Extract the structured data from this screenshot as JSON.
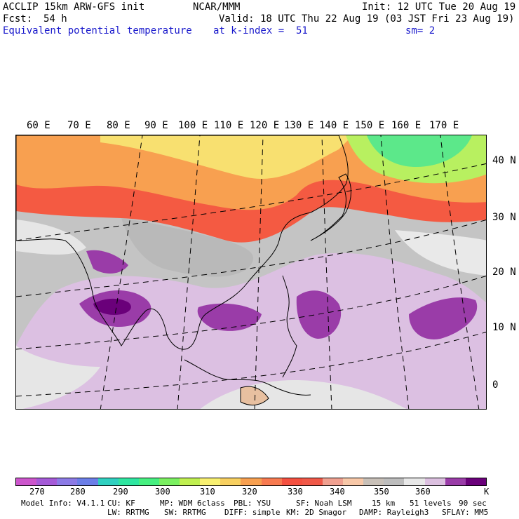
{
  "header": {
    "model": "ACCLIP 15km ARW-GFS init",
    "org": "NCAR/MMM",
    "init": "Init: 12 UTC Tue 20 Aug 19",
    "fcst_label": "Fcst:",
    "fcst_value": "54 h",
    "valid": "Valid: 18 UTC Thu 22 Aug 19 (03 JST Fri 23 Aug 19)",
    "field": "Equivalent potential temperature",
    "level": "at k-index =  51",
    "smooth": "sm= 2"
  },
  "map": {
    "lon_labels": [
      "60 E",
      "70 E",
      "80 E",
      "90 E",
      "100 E",
      "110 E",
      "120 E",
      "130 E",
      "140 E",
      "150 E",
      "160 E",
      "170 E"
    ],
    "lat_labels": [
      "40 N",
      "30 N",
      "20 N",
      "10 N",
      "0"
    ]
  },
  "colorbar": {
    "colors": [
      "#cc55cc",
      "#a55ad8",
      "#8c7ae6",
      "#6b7ee8",
      "#2fd0c0",
      "#2ee6a0",
      "#46f080",
      "#7af060",
      "#c0f050",
      "#f8f070",
      "#f8d060",
      "#f8a050",
      "#f87a50",
      "#f45040",
      "#f05848",
      "#f0a090",
      "#f8c8a8",
      "#c8c0b8",
      "#bdbdbd",
      "#e8e8e8",
      "#dcc0e0",
      "#9a3ca8",
      "#6a007a"
    ],
    "tick_labels": [
      "270",
      "280",
      "290",
      "300",
      "310",
      "320",
      "330",
      "340",
      "350",
      "360"
    ],
    "unit": "K"
  },
  "model_info": {
    "version": "Model Info: V4.1.1",
    "cu": "CU: KF",
    "mp": "MP: WDM 6class",
    "pbl": "PBL: YSU",
    "sf": "SF: Noah LSM",
    "res": "15 km",
    "levels": "51 levels",
    "dt": "90 sec",
    "lw": "LW: RRTMG",
    "sw": "SW: RRTMG",
    "diff": "DIFF: simple",
    "km": "KM: 2D Smagor",
    "damp": "DAMP: Rayleigh3",
    "sflay": "SFLAY: MM5"
  }
}
